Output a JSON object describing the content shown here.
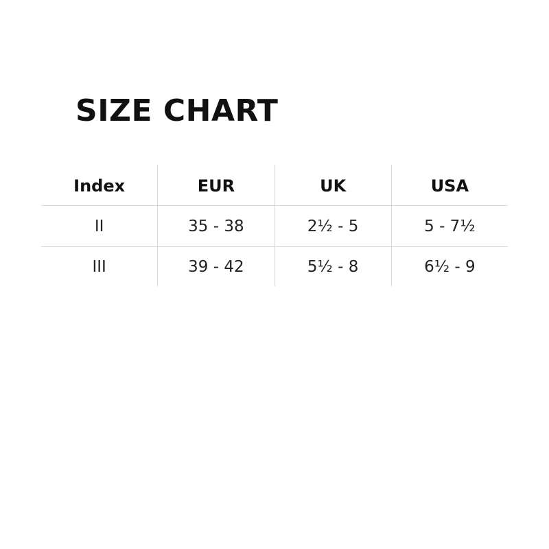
{
  "title": "SIZE CHART",
  "table": {
    "headers": [
      "Index",
      "EUR",
      "UK",
      "USA"
    ],
    "rows": [
      [
        "II",
        "35 - 38",
        "2½ - 5",
        "5 - 7½"
      ],
      [
        "III",
        "39 - 42",
        "5½ - 8",
        "6½ - 9"
      ]
    ]
  }
}
